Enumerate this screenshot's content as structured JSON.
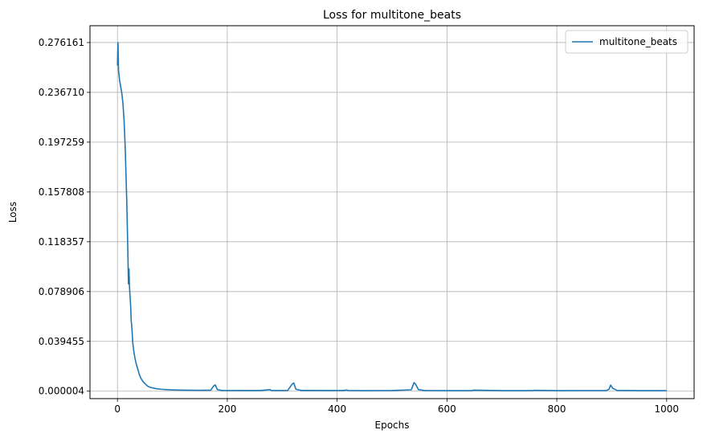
{
  "chart_data": {
    "type": "line",
    "title": "Loss for multitone_beats",
    "xlabel": "Epochs",
    "ylabel": "Loss",
    "xlim": [
      -50,
      1050
    ],
    "ylim": [
      -0.0059,
      0.2895
    ],
    "grid": true,
    "legend_position": "top-right",
    "xticks": [
      0,
      200,
      400,
      600,
      800,
      1000
    ],
    "xtick_labels": [
      "0",
      "200",
      "400",
      "600",
      "800",
      "1000"
    ],
    "yticks": [
      4e-06,
      0.039455,
      0.078906,
      0.118357,
      0.157808,
      0.197259,
      0.23671,
      0.276161
    ],
    "ytick_labels": [
      "0.000004",
      "0.039455",
      "0.078906",
      "0.118357",
      "0.157808",
      "0.197259",
      "0.236710",
      "0.276161"
    ],
    "series": [
      {
        "name": "multitone_beats",
        "color": "#1f77b4",
        "x": [
          0,
          1,
          2,
          3,
          4,
          6,
          8,
          10,
          12,
          14,
          16,
          17,
          18,
          19,
          20,
          21,
          22,
          23,
          24,
          25,
          26,
          27,
          28,
          30,
          32,
          34,
          36,
          38,
          40,
          43,
          46,
          50,
          55,
          60,
          70,
          80,
          90,
          100,
          120,
          150,
          170,
          175,
          178,
          182,
          190,
          220,
          260,
          278,
          280,
          290,
          310,
          318,
          321,
          325,
          335,
          380,
          410,
          418,
          420,
          450,
          500,
          535,
          540,
          543,
          548,
          560,
          600,
          645,
          648,
          700,
          755,
          758,
          800,
          890,
          895,
          898,
          902,
          910,
          950,
          1000
        ],
        "y": [
          0.258,
          0.27616,
          0.254,
          0.25,
          0.246,
          0.241,
          0.236,
          0.228,
          0.215,
          0.195,
          0.165,
          0.15,
          0.13,
          0.11,
          0.085,
          0.097,
          0.082,
          0.075,
          0.068,
          0.056,
          0.052,
          0.045,
          0.038,
          0.031,
          0.026,
          0.022,
          0.019,
          0.016,
          0.013,
          0.01,
          0.008,
          0.006,
          0.004,
          0.003,
          0.002,
          0.0015,
          0.0012,
          0.001,
          0.0008,
          0.0007,
          0.0008,
          0.004,
          0.005,
          0.0012,
          0.0006,
          0.0005,
          0.0005,
          0.0012,
          0.0006,
          0.0005,
          0.0006,
          0.0055,
          0.0065,
          0.0015,
          0.0006,
          0.0005,
          0.0005,
          0.0009,
          0.0005,
          0.0004,
          0.0005,
          0.0011,
          0.0068,
          0.0055,
          0.0012,
          0.0005,
          0.0004,
          0.0004,
          0.0008,
          0.0004,
          0.0004,
          0.0007,
          0.0004,
          0.0005,
          0.0015,
          0.0048,
          0.0022,
          0.0006,
          0.0004,
          0.0004
        ]
      }
    ]
  }
}
